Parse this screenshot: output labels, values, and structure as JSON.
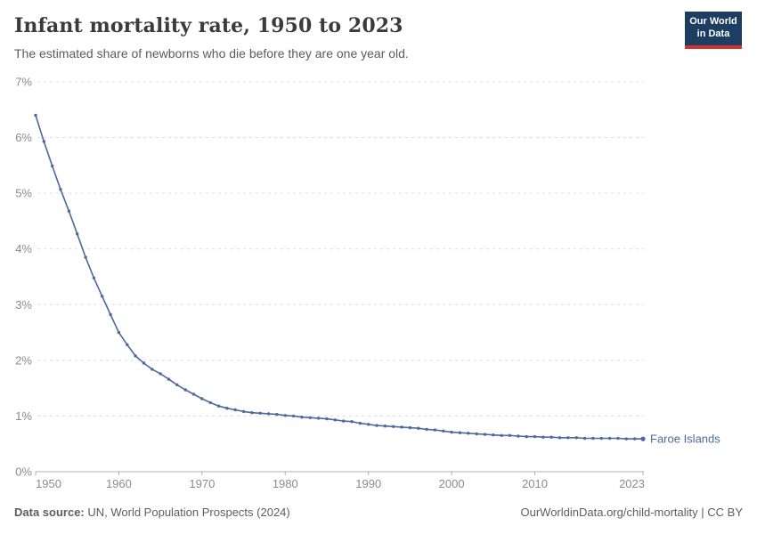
{
  "header": {
    "title": "Infant mortality rate, 1950 to 2023",
    "subtitle": "The estimated share of newborns who die before they are one year old."
  },
  "logo": {
    "line1": "Our World",
    "line2": "in Data",
    "bg_color": "#1d3d63",
    "bar_color": "#d2352f"
  },
  "footer": {
    "datasource_label": "Data source:",
    "datasource_text": " UN, World Population Prospects (2024)",
    "link_text": "OurWorldinData.org/child-mortality | CC BY"
  },
  "chart_data": {
    "type": "line",
    "title": "Infant mortality rate, 1950 to 2023",
    "xlabel": "",
    "ylabel": "",
    "xlim": [
      1950,
      2023
    ],
    "ylim": [
      0,
      7
    ],
    "grid": "horizontal-dashed",
    "legend_position": "end-of-line",
    "line_color": "#4c6a9c",
    "axis_text_color": "#8b8b8b",
    "grid_color": "#dcdcdc",
    "axis_line_color": "#b0b0b0",
    "x_ticks": [
      {
        "value": 1950,
        "label": "1950"
      },
      {
        "value": 1960,
        "label": "1960"
      },
      {
        "value": 1970,
        "label": "1970"
      },
      {
        "value": 1980,
        "label": "1980"
      },
      {
        "value": 1990,
        "label": "1990"
      },
      {
        "value": 2000,
        "label": "2000"
      },
      {
        "value": 2010,
        "label": "2010"
      },
      {
        "value": 2023,
        "label": "2023"
      }
    ],
    "y_ticks": [
      {
        "value": 0,
        "label": "0%"
      },
      {
        "value": 1,
        "label": "1%"
      },
      {
        "value": 2,
        "label": "2%"
      },
      {
        "value": 3,
        "label": "3%"
      },
      {
        "value": 4,
        "label": "4%"
      },
      {
        "value": 5,
        "label": "5%"
      },
      {
        "value": 6,
        "label": "6%"
      },
      {
        "value": 7,
        "label": "7%"
      }
    ],
    "x": [
      1950,
      1951,
      1952,
      1953,
      1954,
      1955,
      1956,
      1957,
      1958,
      1959,
      1960,
      1961,
      1962,
      1963,
      1964,
      1965,
      1966,
      1967,
      1968,
      1969,
      1970,
      1971,
      1972,
      1973,
      1974,
      1975,
      1976,
      1977,
      1978,
      1979,
      1980,
      1981,
      1982,
      1983,
      1984,
      1985,
      1986,
      1987,
      1988,
      1989,
      1990,
      1991,
      1992,
      1993,
      1994,
      1995,
      1996,
      1997,
      1998,
      1999,
      2000,
      2001,
      2002,
      2003,
      2004,
      2005,
      2006,
      2007,
      2008,
      2009,
      2010,
      2011,
      2012,
      2013,
      2014,
      2015,
      2016,
      2017,
      2018,
      2019,
      2020,
      2021,
      2022,
      2023
    ],
    "series": [
      {
        "name": "Faroe Islands",
        "values": [
          6.4,
          5.93,
          5.49,
          5.07,
          4.68,
          4.27,
          3.85,
          3.48,
          3.15,
          2.82,
          2.5,
          2.28,
          2.08,
          1.95,
          1.84,
          1.76,
          1.66,
          1.56,
          1.47,
          1.39,
          1.31,
          1.24,
          1.18,
          1.14,
          1.11,
          1.08,
          1.06,
          1.05,
          1.04,
          1.03,
          1.01,
          1.0,
          0.98,
          0.97,
          0.96,
          0.95,
          0.93,
          0.91,
          0.9,
          0.87,
          0.85,
          0.83,
          0.82,
          0.81,
          0.8,
          0.79,
          0.78,
          0.76,
          0.75,
          0.73,
          0.71,
          0.7,
          0.69,
          0.68,
          0.67,
          0.66,
          0.65,
          0.65,
          0.64,
          0.63,
          0.63,
          0.62,
          0.62,
          0.61,
          0.61,
          0.61,
          0.6,
          0.6,
          0.6,
          0.6,
          0.6,
          0.59,
          0.59,
          0.59
        ]
      }
    ]
  }
}
